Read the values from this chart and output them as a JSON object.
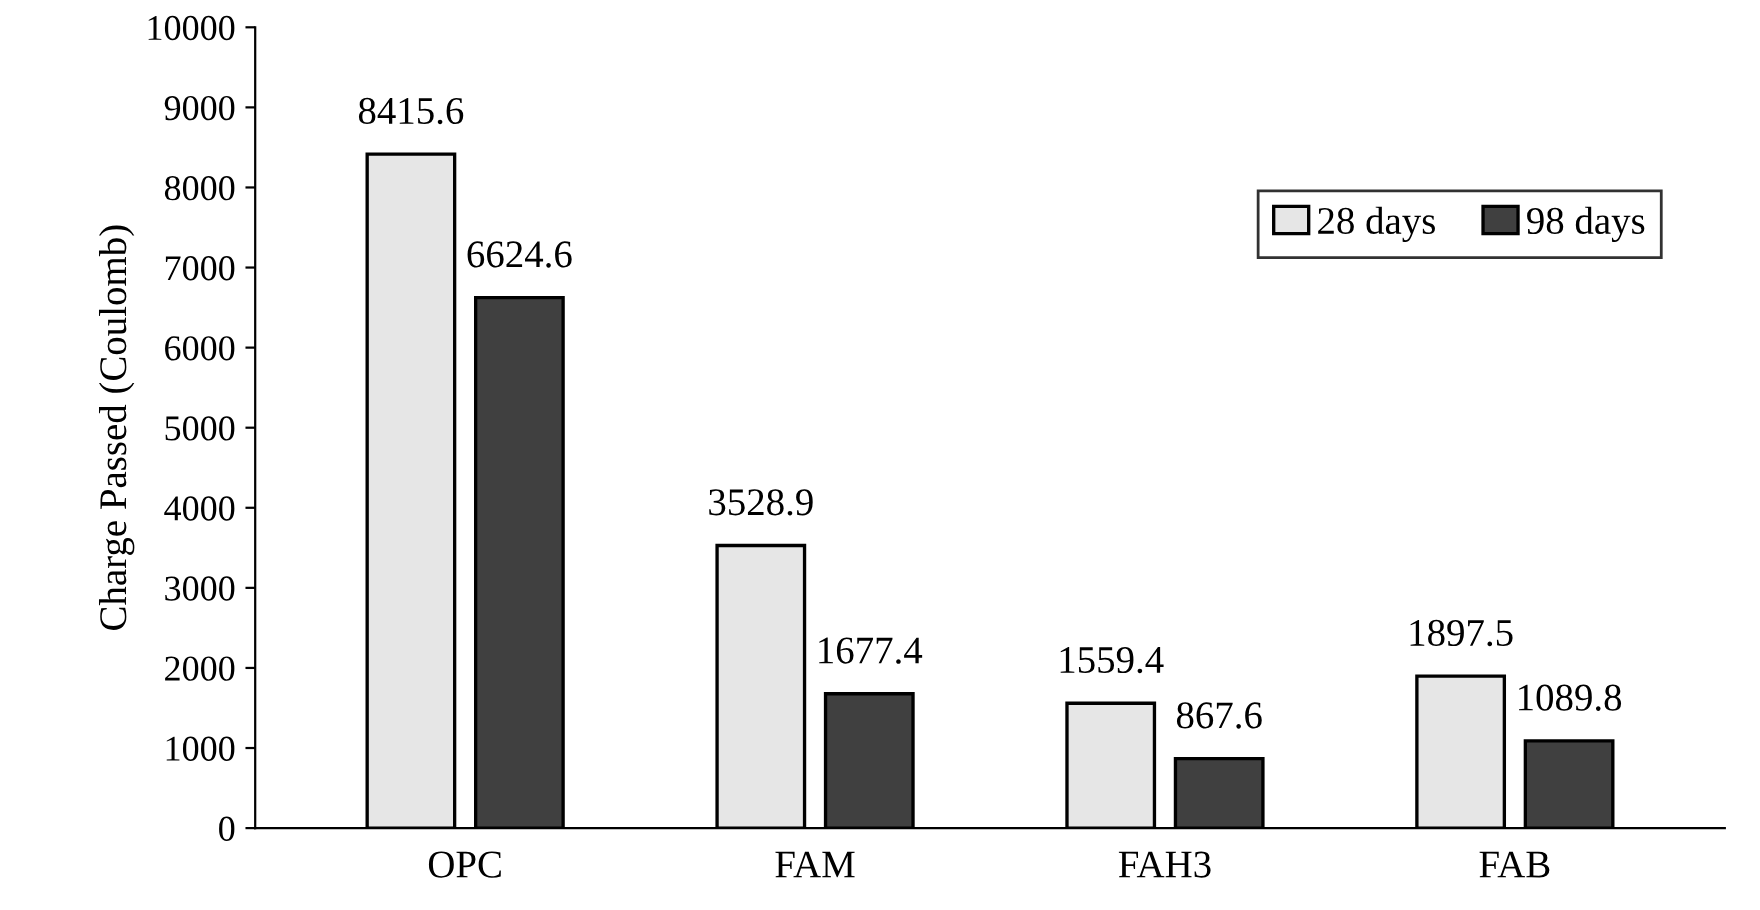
{
  "chart_data": {
    "type": "bar",
    "ylabel": "Charge Passed (Coulomb)",
    "categories": [
      "OPC",
      "FAM",
      "FAH3",
      "FAB"
    ],
    "series": [
      {
        "name": "28 days",
        "color": "#e6e6e6",
        "values": [
          8415.6,
          3528.9,
          1559.4,
          1897.5
        ]
      },
      {
        "name": "98 days",
        "color": "#404040",
        "values": [
          6624.6,
          1677.4,
          867.6,
          1089.8
        ]
      }
    ],
    "ylim": [
      0,
      10000
    ],
    "yticks": [
      0,
      1000,
      2000,
      3000,
      4000,
      5000,
      6000,
      7000,
      8000,
      9000,
      10000
    ],
    "data_labels": true,
    "grid": false,
    "legend": "top right"
  }
}
